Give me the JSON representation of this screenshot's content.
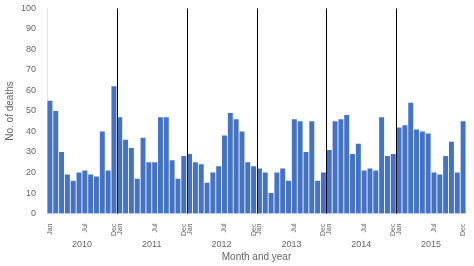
{
  "chart_data": {
    "type": "bar",
    "xlabel": "Month and year",
    "ylabel": "No. of deaths",
    "categories": [
      "Jan",
      null,
      null,
      null,
      null,
      null,
      "Jul",
      null,
      null,
      null,
      null,
      "Dec",
      "Jan",
      null,
      null,
      null,
      null,
      null,
      "Jul",
      null,
      null,
      null,
      null,
      "Dec",
      "Jan",
      null,
      null,
      null,
      null,
      null,
      "Jul",
      null,
      null,
      null,
      null,
      "Dec",
      "Jan",
      null,
      null,
      null,
      null,
      null,
      "Jul",
      null,
      null,
      null,
      null,
      "Dec",
      "Jan",
      null,
      null,
      null,
      null,
      null,
      "Jul",
      null,
      null,
      null,
      null,
      "Dec",
      "Jan",
      null,
      null,
      null,
      null,
      null,
      "Jul",
      null,
      null,
      null,
      null,
      "Dec"
    ],
    "values": [
      55,
      50,
      30,
      19,
      16,
      20,
      21,
      19,
      18,
      40,
      21,
      62,
      47,
      36,
      32,
      17,
      37,
      25,
      25,
      47,
      47,
      26,
      17,
      28,
      29,
      25,
      24,
      15,
      20,
      23,
      38,
      49,
      46,
      40,
      25,
      23,
      22,
      20,
      10,
      20,
      22,
      16,
      46,
      45,
      30,
      45,
      16,
      20,
      31,
      45,
      46,
      48,
      29,
      34,
      21,
      22,
      21,
      47,
      28,
      29,
      42,
      43,
      54,
      41,
      40,
      39,
      20,
      19,
      28,
      35,
      20,
      45
    ],
    "color": "#4472C4",
    "ylim": [
      0,
      100
    ],
    "yticks": [
      0,
      10,
      20,
      30,
      40,
      50,
      60,
      70,
      80,
      90,
      100
    ],
    "annotations": [
      {
        "text": "2010",
        "x": 5.5
      },
      {
        "text": "2011",
        "x": 17.5
      },
      {
        "text": "2012",
        "x": 29.5
      },
      {
        "text": "2013",
        "x": 41.5
      },
      {
        "text": "2014",
        "x": 53.5
      },
      {
        "text": "2015",
        "x": 65.5
      }
    ],
    "vlines": [
      11.5,
      23.5,
      35.5,
      47.5,
      59.5
    ],
    "grid": false
  }
}
